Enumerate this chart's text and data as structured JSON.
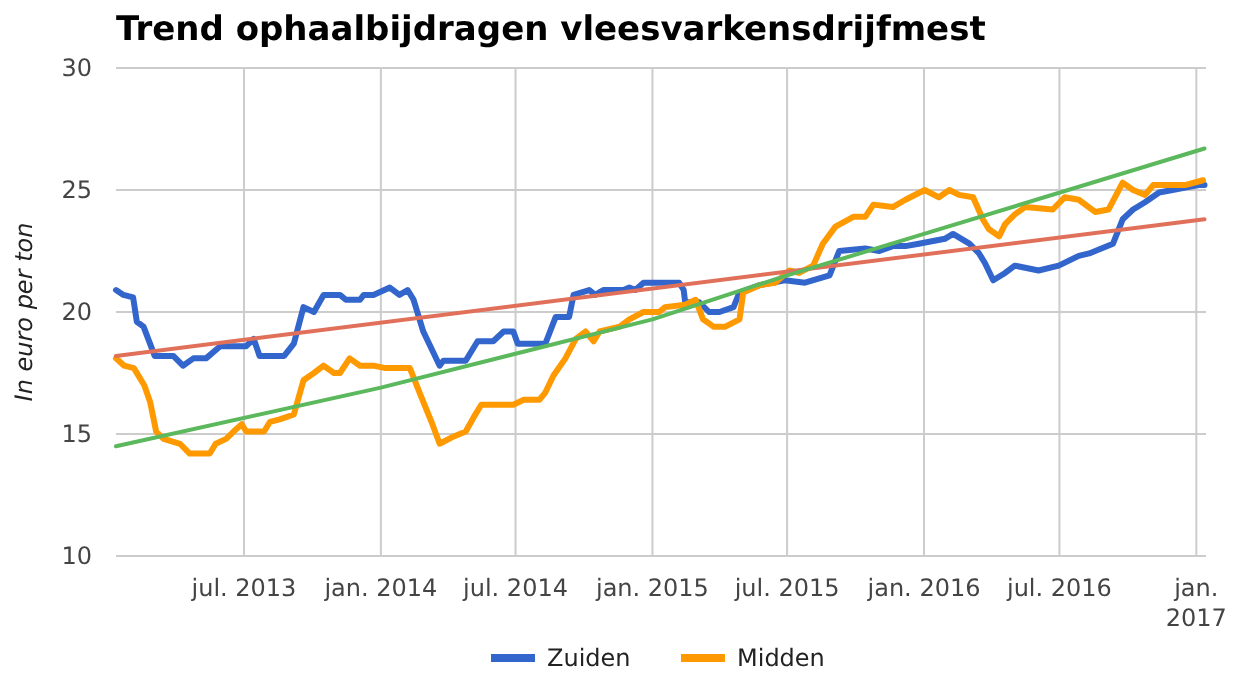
{
  "chart_data": {
    "type": "line",
    "title": "Trend ophaalbijdragen vleesvarkensdrijfmest",
    "ylabel": "In euro per ton",
    "xlim": [
      "2013-01-10",
      "2017-01-14"
    ],
    "xticks": [
      {
        "value": "2013-07-01",
        "label": "jul. 2013"
      },
      {
        "value": "2014-01-01",
        "label": "jan. 2014"
      },
      {
        "value": "2014-07-01",
        "label": "jul. 2014"
      },
      {
        "value": "2015-01-01",
        "label": "jan. 2015"
      },
      {
        "value": "2015-07-01",
        "label": "jul. 2015"
      },
      {
        "value": "2016-01-01",
        "label": "jan. 2016"
      },
      {
        "value": "2016-07-01",
        "label": "jul. 2016"
      },
      {
        "value": "2017-01-01",
        "label": "jan. 2017"
      }
    ],
    "ylim": [
      10,
      30
    ],
    "yticks": [
      10,
      15,
      20,
      25,
      30
    ],
    "grid": true,
    "legend": "bottom",
    "marker": "none",
    "line_style": "solid",
    "series": [
      {
        "name": "Zuiden",
        "color": "#3366cc",
        "x": [
          "2013-01-10",
          "2013-01-20",
          "2013-02-02",
          "2013-02-07",
          "2013-02-16",
          "2013-03-03",
          "2013-03-28",
          "2013-04-10",
          "2013-04-24",
          "2013-05-11",
          "2013-05-30",
          "2013-07-04",
          "2013-07-14",
          "2013-07-22",
          "2013-08-24",
          "2013-09-06",
          "2013-09-19",
          "2013-10-03",
          "2013-10-16",
          "2013-11-07",
          "2013-11-15",
          "2013-12-04",
          "2013-12-09",
          "2013-12-22",
          "2014-01-13",
          "2014-01-26",
          "2014-02-06",
          "2014-02-14",
          "2014-02-27",
          "2014-03-21",
          "2014-03-26",
          "2014-04-25",
          "2014-05-11",
          "2014-06-01",
          "2014-06-15",
          "2014-06-28",
          "2014-07-04",
          "2014-08-10",
          "2014-08-24",
          "2014-09-11",
          "2014-09-17",
          "2014-10-08",
          "2014-10-16",
          "2014-10-27",
          "2014-11-23",
          "2014-12-01",
          "2014-12-09",
          "2014-12-20",
          "2015-01-10",
          "2015-02-06",
          "2015-02-12",
          "2015-02-14",
          "2015-03-05",
          "2015-03-18",
          "2015-04-01",
          "2015-04-20",
          "2015-04-28",
          "2015-05-25",
          "2015-06-28",
          "2015-07-25",
          "2015-08-27",
          "2015-09-09",
          "2015-10-14",
          "2015-11-02",
          "2015-11-20",
          "2015-12-07",
          "2015-12-25",
          "2016-01-29",
          "2016-02-09",
          "2016-03-02",
          "2016-03-15",
          "2016-03-23",
          "2016-04-03",
          "2016-04-19",
          "2016-05-02",
          "2016-06-03",
          "2016-06-30",
          "2016-07-27",
          "2016-08-10",
          "2016-09-11",
          "2016-09-24",
          "2016-10-08",
          "2016-10-24",
          "2016-11-12",
          "2016-11-30",
          "2017-01-04",
          "2017-01-12"
        ],
        "values": [
          20.9,
          20.7,
          20.6,
          19.6,
          19.4,
          18.2,
          18.2,
          17.8,
          18.1,
          18.1,
          18.6,
          18.6,
          18.9,
          18.2,
          18.2,
          18.7,
          20.2,
          20.0,
          20.7,
          20.7,
          20.5,
          20.5,
          20.7,
          20.7,
          21.0,
          20.7,
          20.9,
          20.5,
          19.2,
          17.8,
          18.0,
          18.0,
          18.8,
          18.8,
          19.2,
          19.2,
          18.7,
          18.7,
          19.8,
          19.8,
          20.7,
          20.9,
          20.7,
          20.9,
          20.9,
          21.0,
          20.9,
          21.2,
          21.2,
          21.2,
          20.9,
          20.4,
          20.4,
          20.0,
          20.0,
          20.2,
          20.8,
          21.1,
          21.3,
          21.2,
          21.5,
          22.5,
          22.6,
          22.5,
          22.7,
          22.7,
          22.8,
          23.0,
          23.2,
          22.8,
          22.4,
          22.0,
          21.3,
          21.6,
          21.9,
          21.7,
          21.9,
          22.3,
          22.4,
          22.8,
          23.8,
          24.2,
          24.5,
          24.9,
          25.0,
          25.2,
          25.2
        ]
      },
      {
        "name": "Midden",
        "color": "#ff9900",
        "x": [
          "2013-01-10",
          "2013-01-21",
          "2013-02-03",
          "2013-02-17",
          "2013-02-25",
          "2013-03-05",
          "2013-03-15",
          "2013-04-06",
          "2013-04-19",
          "2013-05-16",
          "2013-05-24",
          "2013-06-07",
          "2013-06-17",
          "2013-06-28",
          "2013-07-04",
          "2013-07-28",
          "2013-08-05",
          "2013-08-18",
          "2013-09-06",
          "2013-09-19",
          "2013-10-03",
          "2013-10-16",
          "2013-10-30",
          "2013-11-07",
          "2013-11-20",
          "2013-12-04",
          "2013-12-22",
          "2014-01-07",
          "2014-02-09",
          "2014-02-22",
          "2014-03-10",
          "2014-03-21",
          "2014-04-09",
          "2014-04-25",
          "2014-05-06",
          "2014-05-16",
          "2014-06-28",
          "2014-07-12",
          "2014-08-02",
          "2014-08-10",
          "2014-08-21",
          "2014-09-06",
          "2014-09-20",
          "2014-10-03",
          "2014-10-14",
          "2014-10-22",
          "2014-11-18",
          "2014-12-01",
          "2014-12-20",
          "2015-01-10",
          "2015-01-18",
          "2015-02-14",
          "2015-02-28",
          "2015-03-10",
          "2015-03-24",
          "2015-04-09",
          "2015-04-28",
          "2015-05-03",
          "2015-05-25",
          "2015-06-15",
          "2015-07-04",
          "2015-07-17",
          "2015-08-05",
          "2015-08-18",
          "2015-09-04",
          "2015-09-28",
          "2015-10-14",
          "2015-10-25",
          "2015-11-20",
          "2015-12-07",
          "2016-01-02",
          "2016-01-21",
          "2016-02-04",
          "2016-02-17",
          "2016-03-07",
          "2016-03-20",
          "2016-03-28",
          "2016-04-11",
          "2016-04-19",
          "2016-05-02",
          "2016-05-16",
          "2016-06-22",
          "2016-07-08",
          "2016-07-27",
          "2016-08-18",
          "2016-09-05",
          "2016-09-24",
          "2016-10-08",
          "2016-10-24",
          "2016-11-04",
          "2016-12-17",
          "2017-01-10"
        ],
        "values": [
          18.1,
          17.8,
          17.7,
          17.0,
          16.3,
          15.1,
          14.8,
          14.6,
          14.2,
          14.2,
          14.6,
          14.8,
          15.1,
          15.4,
          15.1,
          15.1,
          15.5,
          15.6,
          15.8,
          17.2,
          17.5,
          17.8,
          17.5,
          17.5,
          18.1,
          17.8,
          17.8,
          17.7,
          17.7,
          16.7,
          15.5,
          14.6,
          14.9,
          15.1,
          15.7,
          16.2,
          16.2,
          16.4,
          16.4,
          16.7,
          17.4,
          18.1,
          18.9,
          19.2,
          18.8,
          19.2,
          19.4,
          19.7,
          20.0,
          20.0,
          20.2,
          20.3,
          20.5,
          19.7,
          19.4,
          19.4,
          19.7,
          20.8,
          21.1,
          21.2,
          21.7,
          21.6,
          21.9,
          22.8,
          23.5,
          23.9,
          23.9,
          24.4,
          24.3,
          24.6,
          25.0,
          24.7,
          25.0,
          24.8,
          24.7,
          23.8,
          23.4,
          23.1,
          23.6,
          24.0,
          24.3,
          24.2,
          24.7,
          24.6,
          24.1,
          24.2,
          25.3,
          25.0,
          24.8,
          25.2,
          25.2,
          25.4
        ]
      },
      {
        "color": "#e0705a",
        "x": [
          "2013-01-10",
          "2017-01-12"
        ],
        "values": [
          18.2,
          23.8
        ]
      },
      {
        "color": "#5cb85c",
        "x": [
          "2013-01-10",
          "2014-01-01",
          "2015-01-01",
          "2015-07-01",
          "2016-01-01",
          "2017-01-12"
        ],
        "values": [
          14.5,
          16.9,
          19.7,
          21.5,
          23.2,
          26.7
        ]
      }
    ]
  }
}
